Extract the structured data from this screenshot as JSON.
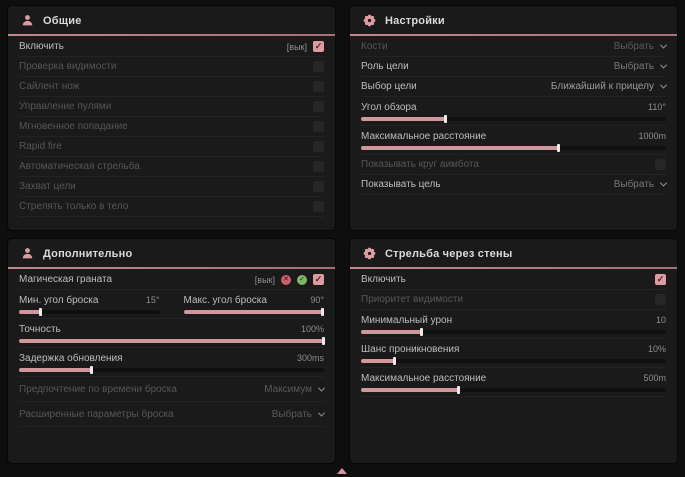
{
  "theme": {
    "accent": "#dc9ca1",
    "page_background": "#0e0e0e",
    "panel_background": "#1a1a1a",
    "header_line": "#bb8287",
    "red_badge": "#ce5f6d",
    "green_badge": "#7cb964"
  },
  "general": {
    "title": "Общие",
    "icon": "person-icon",
    "rows": {
      "enable": {
        "label": "Включить",
        "hint": "[вык]",
        "checked": true
      },
      "visibility_check": {
        "label": "Проверка видимости",
        "checked": false
      },
      "silent_knife": {
        "label": "Сайлент нож",
        "checked": false
      },
      "bullet_control": {
        "label": "Управление пулями",
        "checked": false
      },
      "instant_hit": {
        "label": "Мгновенное попадание",
        "checked": false
      },
      "rapid_fire": {
        "label": "Rapid fire",
        "checked": false
      },
      "auto_fire": {
        "label": "Автоматическая стрельба",
        "checked": false
      },
      "target_lock": {
        "label": "Захват цели",
        "checked": false
      },
      "body_only": {
        "label": "Стрелять только в тело",
        "checked": false
      }
    }
  },
  "settings": {
    "title": "Настройки",
    "icon": "gear-icon",
    "rows": {
      "bones": {
        "label": "Кости",
        "value": "Выбрать"
      },
      "target_role": {
        "label": "Роль цели",
        "value": "Выбрать"
      },
      "target_selection": {
        "label": "Выбор цели",
        "value": "Ближайший к прицелу"
      },
      "fov": {
        "label": "Угол обзора",
        "value": "110°",
        "fill": 28
      },
      "max_distance": {
        "label": "Максимальное расстояние",
        "value": "1000m",
        "fill": 65
      },
      "show_aimbot_circle": {
        "label": "Показывать круг аимбота",
        "checked": false
      },
      "show_target": {
        "label": "Показывать цель",
        "value": "Выбрать"
      }
    }
  },
  "additional": {
    "title": "Дополнительно",
    "icon": "person-icon",
    "rows": {
      "magic_grenade": {
        "label": "Магическая граната",
        "hint": "[вык]",
        "checked": true
      },
      "min_throw_angle": {
        "label": "Мин. угол броска",
        "value": "15°",
        "fill": 16
      },
      "max_throw_angle": {
        "label": "Макс. угол броска",
        "value": "90°",
        "fill": 99
      },
      "accuracy": {
        "label": "Точность",
        "value": "100%",
        "fill": 100
      },
      "update_delay": {
        "label": "Задержка обновления",
        "value": "300ms",
        "fill": 24
      },
      "throw_time_pref": {
        "label": "Предпочтение по времени броска",
        "value": "Максимум"
      },
      "advanced_throw": {
        "label": "Расширенные параметры броска",
        "value": "Выбрать"
      }
    }
  },
  "walls": {
    "title": "Стрельба через стены",
    "icon": "gear-icon",
    "rows": {
      "enable": {
        "label": "Включить",
        "checked": true
      },
      "visibility_priority": {
        "label": "Приоритет видимости",
        "checked": false
      },
      "min_damage": {
        "label": "Минимальный урон",
        "value": "10",
        "fill": 20
      },
      "penetration_chance": {
        "label": "Шанс проникновения",
        "value": "10%",
        "fill": 11
      },
      "max_distance": {
        "label": "Максимальное расстояние",
        "value": "500m",
        "fill": 32
      }
    }
  }
}
